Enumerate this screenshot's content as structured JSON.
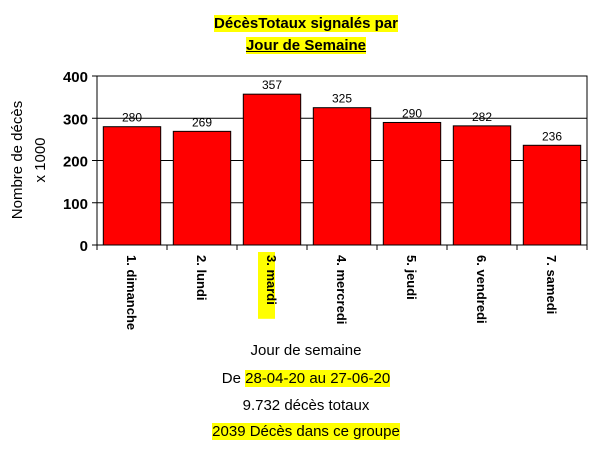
{
  "title": {
    "line1": "DécèsTotaux signalés par",
    "line2": "Jour de Semaine"
  },
  "chart_data": {
    "type": "bar",
    "categories": [
      "1. dimanche",
      "2. lundi",
      "3. mardi",
      "4. mercredi",
      "5. jeudi",
      "6. vendredi",
      "7. samedi"
    ],
    "values": [
      280,
      269,
      357,
      325,
      290,
      282,
      236
    ],
    "highlighted_category": "3. mardi",
    "ylabel_line1": "Nombre de décès",
    "ylabel_line2": "x 1000",
    "ylim": [
      0,
      400
    ],
    "yticks": [
      0,
      100,
      200,
      300,
      400
    ],
    "grid": true,
    "bar_color": "#ff0000",
    "highlight_color": "#ffff00"
  },
  "footer": {
    "xlabel": "Jour de semaine",
    "date_prefix": "De ",
    "date_from": "28-04-20",
    "date_sep": " au ",
    "date_to": "27-06-20",
    "total_text": "9.732 décès totaux",
    "group_text": "2039  Décès dans ce groupe"
  }
}
